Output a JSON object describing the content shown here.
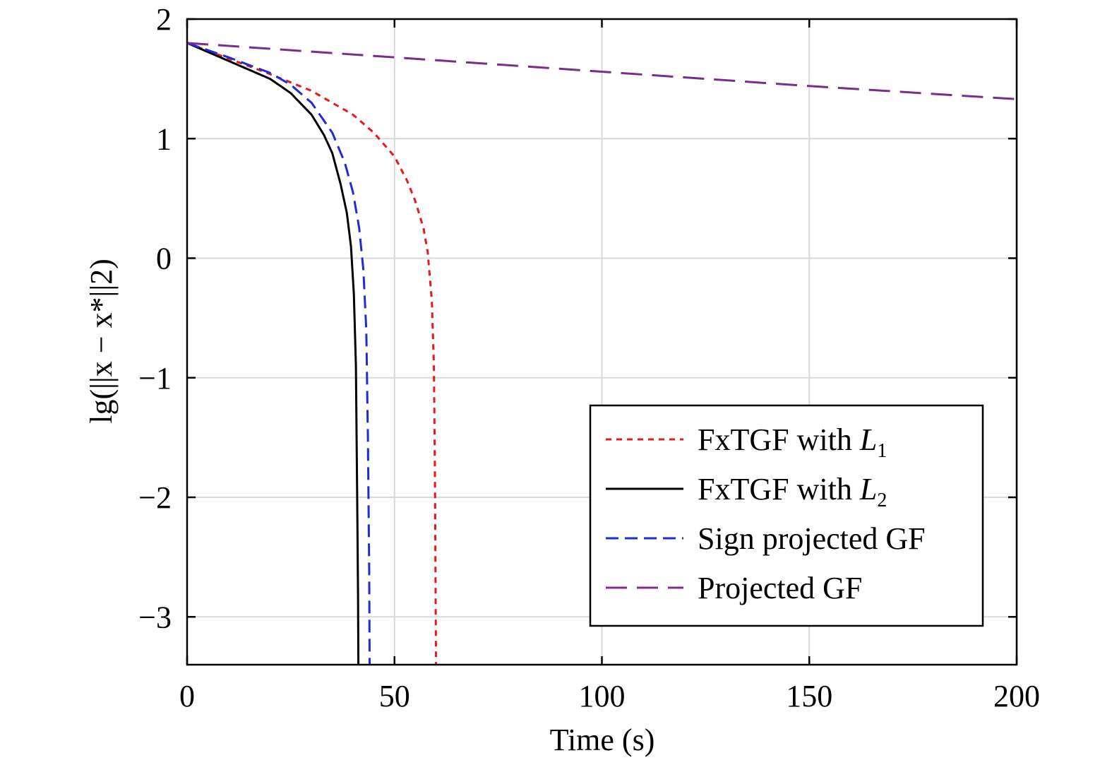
{
  "chart_data": {
    "type": "line",
    "xlabel": "Time (s)",
    "ylabel": "lg(||x − x*||2)",
    "xlim": [
      0,
      200
    ],
    "ylim": [
      -3.4,
      2
    ],
    "xticks": [
      0,
      50,
      100,
      150,
      200
    ],
    "xtick_labels": [
      "0",
      "50",
      "100",
      "150",
      "200"
    ],
    "yticks": [
      2,
      1,
      0,
      -1,
      -2,
      -3
    ],
    "ytick_labels": [
      "2",
      "1",
      "0",
      "−1",
      "−2",
      "−3"
    ],
    "grid": true,
    "legend_position": "bottom-right",
    "series": [
      {
        "name": "FxTGF with L1",
        "legend_main": "FxTGF with ",
        "legend_var": "L",
        "legend_sub": "1",
        "color": "#e41a1c",
        "dash": "dotted",
        "x": [
          0,
          10,
          20,
          30,
          40,
          45,
          50,
          53,
          55,
          57,
          58,
          59,
          59.5,
          59.8,
          60
        ],
        "y": [
          1.8,
          1.67,
          1.54,
          1.4,
          1.2,
          1.05,
          0.85,
          0.65,
          0.48,
          0.25,
          0.05,
          -0.35,
          -0.9,
          -2.0,
          -3.4
        ]
      },
      {
        "name": "FxTGF with L2",
        "legend_main": "FxTGF with ",
        "legend_var": "L",
        "legend_sub": "2",
        "color": "#000000",
        "dash": "solid",
        "x": [
          0,
          10,
          20,
          25,
          30,
          33,
          35,
          37,
          38.5,
          39.5,
          40.2,
          40.7,
          41,
          41.2,
          41.3
        ],
        "y": [
          1.8,
          1.65,
          1.5,
          1.38,
          1.2,
          1.03,
          0.88,
          0.62,
          0.38,
          0.1,
          -0.3,
          -0.9,
          -2.0,
          -2.8,
          -3.4
        ]
      },
      {
        "name": "Sign projected GF",
        "legend_main": "Sign projected GF",
        "legend_var": "",
        "legend_sub": "",
        "color": "#1f2bd6",
        "dash": "dashed",
        "x": [
          0,
          10,
          20,
          25,
          30,
          35,
          38,
          40,
          41.5,
          42.5,
          43.2,
          43.6,
          43.9,
          44
        ],
        "y": [
          1.8,
          1.68,
          1.55,
          1.45,
          1.3,
          1.05,
          0.8,
          0.55,
          0.25,
          -0.1,
          -0.6,
          -1.5,
          -2.6,
          -3.4
        ]
      },
      {
        "name": "Projected GF",
        "legend_main": "Projected GF",
        "legend_var": "",
        "legend_sub": "",
        "color": "#7b2d8e",
        "dash": "longdash",
        "x": [
          0,
          50,
          100,
          150,
          200
        ],
        "y": [
          1.8,
          1.68,
          1.56,
          1.44,
          1.33
        ]
      }
    ]
  }
}
